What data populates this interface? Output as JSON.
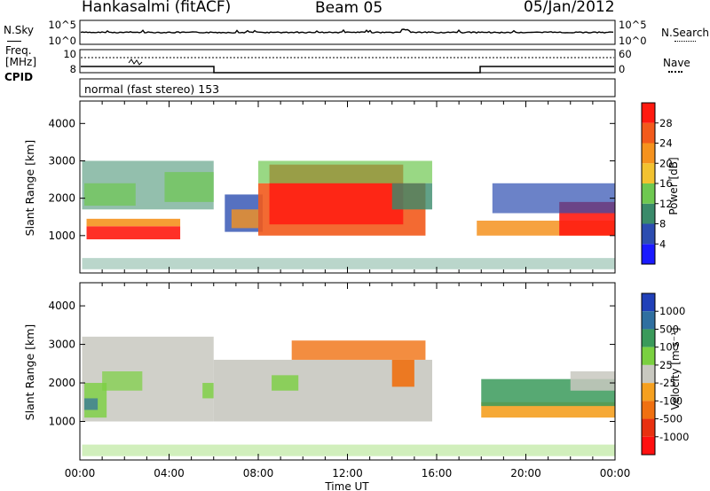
{
  "header": {
    "station": "Hankasalmi (fitACF)",
    "beam": "Beam 05",
    "date": "05/Jan/2012"
  },
  "side_labels": {
    "nsky": "N.Sky",
    "freq_line1": "Freq.",
    "freq_line2": "[MHz]",
    "cpid": "CPID",
    "nsearch": "N.Search",
    "nave": "Nave"
  },
  "mode_text": "normal (fast stereo) 153",
  "chart_data": [
    {
      "type": "line",
      "name": "nsky-nsearch",
      "left_ticks": [
        "10^5",
        "10^0"
      ],
      "right_ticks": [
        "10^5",
        "10^0"
      ]
    },
    {
      "type": "line",
      "name": "freq-nave",
      "left_ticks": [
        "10",
        "8"
      ],
      "right_ticks": [
        "60",
        "0"
      ]
    },
    {
      "type": "heatmap",
      "name": "power",
      "ylabel": "Slant Range [km]",
      "ylim": [
        0,
        4600
      ],
      "yticks": [
        1000,
        2000,
        3000,
        4000
      ],
      "xlim": [
        0,
        24
      ],
      "colorbar": {
        "label": "Power [dB]",
        "ticks": [
          "4",
          "8",
          "12",
          "16",
          "20",
          "24",
          "28"
        ],
        "colors": [
          "#1a1aff",
          "#2c4db0",
          "#3a8a6a",
          "#6ec850",
          "#f2c230",
          "#f5921e",
          "#f25a1c",
          "#ff1a10"
        ]
      }
    },
    {
      "type": "heatmap",
      "name": "velocity",
      "ylabel": "Slant Range [km]",
      "ylim": [
        0,
        4600
      ],
      "yticks": [
        1000,
        2000,
        3000,
        4000
      ],
      "xlim": [
        0,
        24
      ],
      "colorbar": {
        "label": "Velocity [m s⁻¹]",
        "ticks": [
          "1000",
          "500",
          "100",
          "25",
          "-25",
          "-100",
          "-500",
          "-1000"
        ],
        "colors": [
          "#2040b8",
          "#2f6fa0",
          "#3a9a5a",
          "#7ad040",
          "#c8c8c0",
          "#f5a020",
          "#f07010",
          "#e83010",
          "#ff1010"
        ]
      }
    }
  ],
  "x_axis": {
    "ticks": [
      "00:00",
      "04:00",
      "08:00",
      "12:00",
      "16:00",
      "20:00",
      "00:00"
    ],
    "label": "Time UT"
  }
}
